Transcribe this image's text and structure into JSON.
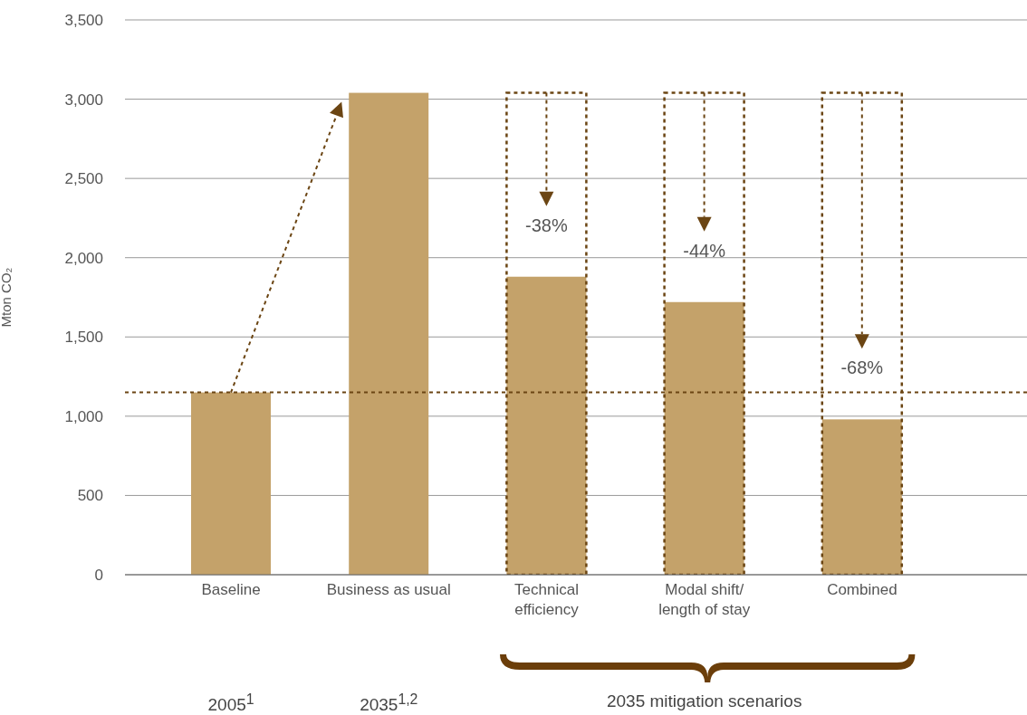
{
  "chart_data": {
    "type": "bar",
    "ylabel": "Mton CO₂",
    "categories": [
      "Baseline",
      "Business as usual",
      "Technical\nefficiency",
      "Modal shift/\nlength of stay",
      "Combined"
    ],
    "series": [
      {
        "color": "#c4a26a",
        "values": [
          1150,
          3040,
          1880,
          1720,
          980
        ]
      },
      {
        "color": "#6b4513",
        "values": [
          null,
          null,
          3040,
          3040,
          3040
        ]
      }
    ],
    "ylim": [
      0,
      3500
    ],
    "yticks": [
      {
        "value": 0,
        "label": "0"
      },
      {
        "value": 500,
        "label": "500"
      },
      {
        "value": 1000,
        "label": "1,000"
      },
      {
        "value": 1500,
        "label": "1,500"
      },
      {
        "value": 2000,
        "label": "2,000"
      },
      {
        "value": 2500,
        "label": "2,500"
      },
      {
        "value": 3000,
        "label": "3,000"
      },
      {
        "value": 3500,
        "label": "3,500"
      }
    ],
    "grid": "y",
    "ref_lines": [
      {
        "axis": "y",
        "value": 1150,
        "color": "#6b4513",
        "line_style": "dotted"
      }
    ],
    "annotations": [
      {
        "text": "-38%",
        "x": "Technical\nefficiency",
        "y": 1880
      },
      {
        "text": "-44%",
        "x": "Modal shift/\nlength of stay",
        "y": 1720
      },
      {
        "text": "-68%",
        "x": "Combined",
        "y": 980
      },
      "2005$^{1}$",
      "2035$^{1,2}$",
      "2035 mitigation scenarios"
    ]
  }
}
